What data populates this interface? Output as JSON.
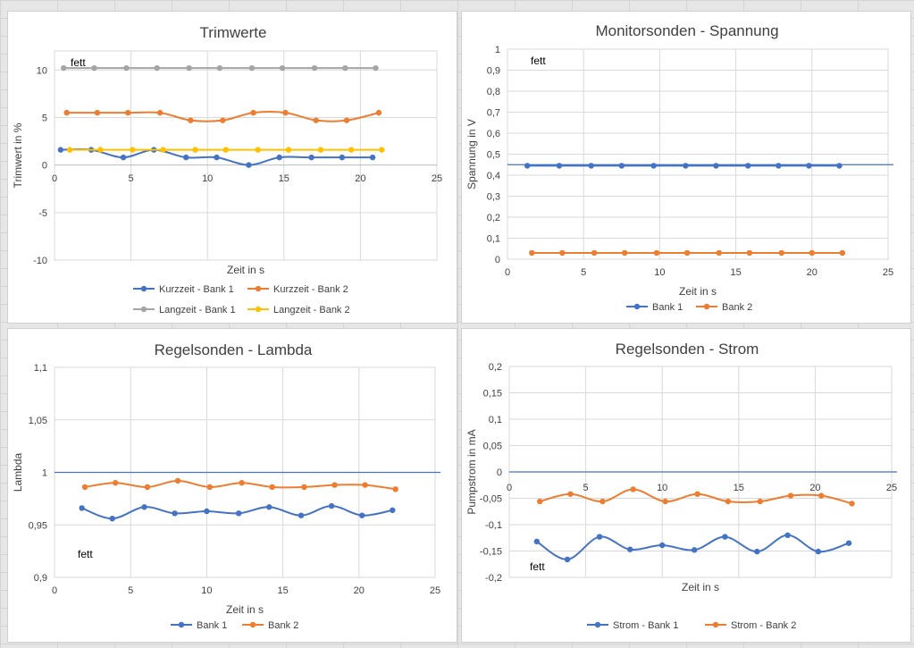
{
  "colors": {
    "blue": "#4472c4",
    "orange": "#ed7d31",
    "gray": "#a5a5a5",
    "yellow": "#ffc000"
  },
  "chart_data": [
    {
      "type": "line",
      "title": "Trimwerte",
      "xlabel": "Zeit in s",
      "ylabel": "Trimwert in %",
      "xlim": [
        0,
        25
      ],
      "ylim": [
        -10,
        12
      ],
      "xticks": [
        "0",
        "5",
        "10",
        "15",
        "20",
        "25"
      ],
      "yticks": [
        "10",
        "5",
        "0",
        "-5",
        "-10"
      ],
      "ytick_values": [
        10,
        5,
        0,
        -5,
        -10
      ],
      "grid": true,
      "legend": "bottom",
      "annotation": "fett",
      "series": [
        {
          "name": "Kurzzeit - Bank 1",
          "color": "#4472c4",
          "x": [
            0.4,
            2.4,
            4.5,
            6.5,
            8.6,
            10.6,
            12.7,
            14.7,
            16.8,
            18.8,
            20.8
          ],
          "y": [
            1.6,
            1.6,
            0.8,
            1.6,
            0.8,
            0.8,
            0.0,
            0.8,
            0.8,
            0.8,
            0.8
          ]
        },
        {
          "name": "Kurzzeit - Bank 2",
          "color": "#ed7d31",
          "x": [
            0.8,
            2.8,
            4.8,
            6.9,
            8.9,
            11.0,
            13.0,
            15.1,
            17.1,
            19.1,
            21.2
          ],
          "y": [
            5.5,
            5.5,
            5.5,
            5.5,
            4.7,
            4.7,
            5.5,
            5.5,
            4.7,
            4.7,
            5.5
          ]
        },
        {
          "name": "Langzeit - Bank 1",
          "color": "#a5a5a5",
          "x": [
            0.6,
            2.6,
            4.7,
            6.7,
            8.8,
            10.8,
            12.9,
            14.9,
            17.0,
            19.0,
            21.0
          ],
          "y": [
            10.2,
            10.2,
            10.2,
            10.2,
            10.2,
            10.2,
            10.2,
            10.2,
            10.2,
            10.2,
            10.2
          ]
        },
        {
          "name": "Langzeit - Bank 2",
          "color": "#ffc000",
          "x": [
            1.0,
            3.0,
            5.1,
            7.1,
            9.2,
            11.2,
            13.3,
            15.3,
            17.4,
            19.4,
            21.4
          ],
          "y": [
            1.6,
            1.6,
            1.6,
            1.6,
            1.6,
            1.6,
            1.6,
            1.6,
            1.6,
            1.6,
            1.6
          ]
        }
      ]
    },
    {
      "type": "line",
      "title": "Monitorsonden - Spannung",
      "xlabel": "Zeit in s",
      "ylabel": "Spannung in V",
      "xlim": [
        0,
        25
      ],
      "ylim": [
        0,
        1
      ],
      "xticks": [
        "0",
        "5",
        "10",
        "15",
        "20",
        "25"
      ],
      "yticks": [
        "1",
        "0,9",
        "0,8",
        "0,7",
        "0,6",
        "0,5",
        "0,4",
        "0,3",
        "0,2",
        "0,1",
        "0"
      ],
      "ytick_values": [
        1,
        0.9,
        0.8,
        0.7,
        0.6,
        0.5,
        0.4,
        0.3,
        0.2,
        0.1,
        0
      ],
      "hline": 0.45,
      "grid": true,
      "legend": "bottom",
      "annotation": "fett",
      "series": [
        {
          "name": "Bank 1",
          "color": "#4472c4",
          "x": [
            1.3,
            3.4,
            5.5,
            7.5,
            9.6,
            11.7,
            13.7,
            15.8,
            17.8,
            19.8,
            21.8
          ],
          "y": [
            0.445,
            0.445,
            0.445,
            0.445,
            0.445,
            0.445,
            0.445,
            0.445,
            0.445,
            0.445,
            0.445
          ]
        },
        {
          "name": "Bank 2",
          "color": "#ed7d31",
          "x": [
            1.6,
            3.6,
            5.7,
            7.7,
            9.8,
            11.8,
            13.9,
            15.9,
            18.0,
            20.0,
            22.0
          ],
          "y": [
            0.03,
            0.03,
            0.03,
            0.03,
            0.03,
            0.03,
            0.03,
            0.03,
            0.03,
            0.03,
            0.03
          ]
        }
      ]
    },
    {
      "type": "line",
      "title": "Regelsonden - Lambda",
      "xlabel": "Zeit in s",
      "ylabel": "Lambda",
      "xlim": [
        0,
        25
      ],
      "ylim": [
        0.9,
        1.1
      ],
      "xticks": [
        "0",
        "5",
        "10",
        "15",
        "20",
        "25"
      ],
      "yticks": [
        "1,1",
        "1,05",
        "1",
        "0,95",
        "0,9"
      ],
      "ytick_values": [
        1.1,
        1.05,
        1.0,
        0.95,
        0.9
      ],
      "hline": 1.0,
      "grid": true,
      "legend": "bottom",
      "annotation": "fett",
      "series": [
        {
          "name": "Bank 1",
          "color": "#4472c4",
          "x": [
            1.8,
            3.8,
            5.9,
            7.9,
            10.0,
            12.1,
            14.1,
            16.2,
            18.2,
            20.2,
            22.2
          ],
          "y": [
            0.966,
            0.956,
            0.967,
            0.961,
            0.963,
            0.961,
            0.967,
            0.959,
            0.968,
            0.959,
            0.964
          ]
        },
        {
          "name": "Bank 2",
          "color": "#ed7d31",
          "x": [
            2.0,
            4.0,
            6.1,
            8.1,
            10.2,
            12.3,
            14.3,
            16.4,
            18.4,
            20.4,
            22.4
          ],
          "y": [
            0.986,
            0.99,
            0.986,
            0.992,
            0.986,
            0.99,
            0.986,
            0.986,
            0.988,
            0.988,
            0.984
          ]
        }
      ]
    },
    {
      "type": "line",
      "title": "Regelsonden - Strom",
      "xlabel": "Zeit in s",
      "ylabel": "Pumpstrom in mA",
      "xlim": [
        0,
        25
      ],
      "ylim": [
        -0.2,
        0.2
      ],
      "xticks": [
        "0",
        "5",
        "10",
        "15",
        "20",
        "25"
      ],
      "yticks": [
        "0,2",
        "0,15",
        "0,1",
        "0,05",
        "0",
        "-0,05",
        "-0,1",
        "-0,15",
        "-0,2"
      ],
      "ytick_values": [
        0.2,
        0.15,
        0.1,
        0.05,
        0,
        -0.05,
        -0.1,
        -0.15,
        -0.2
      ],
      "x_axis_at": 0,
      "hline": 0,
      "grid": true,
      "legend": "bottom",
      "annotation": "fett",
      "series": [
        {
          "name": "Strom - Bank 1",
          "color": "#4472c4",
          "x": [
            1.8,
            3.8,
            5.9,
            7.9,
            10.0,
            12.1,
            14.1,
            16.2,
            18.2,
            20.2,
            22.2
          ],
          "y": [
            -0.132,
            -0.166,
            -0.123,
            -0.147,
            -0.139,
            -0.148,
            -0.123,
            -0.151,
            -0.12,
            -0.151,
            -0.135
          ]
        },
        {
          "name": "Strom - Bank 2",
          "color": "#ed7d31",
          "x": [
            2.0,
            4.0,
            6.1,
            8.1,
            10.2,
            12.3,
            14.3,
            16.4,
            18.4,
            20.4,
            22.4
          ],
          "y": [
            -0.056,
            -0.042,
            -0.056,
            -0.033,
            -0.056,
            -0.042,
            -0.056,
            -0.056,
            -0.045,
            -0.045,
            -0.06
          ]
        }
      ]
    }
  ]
}
